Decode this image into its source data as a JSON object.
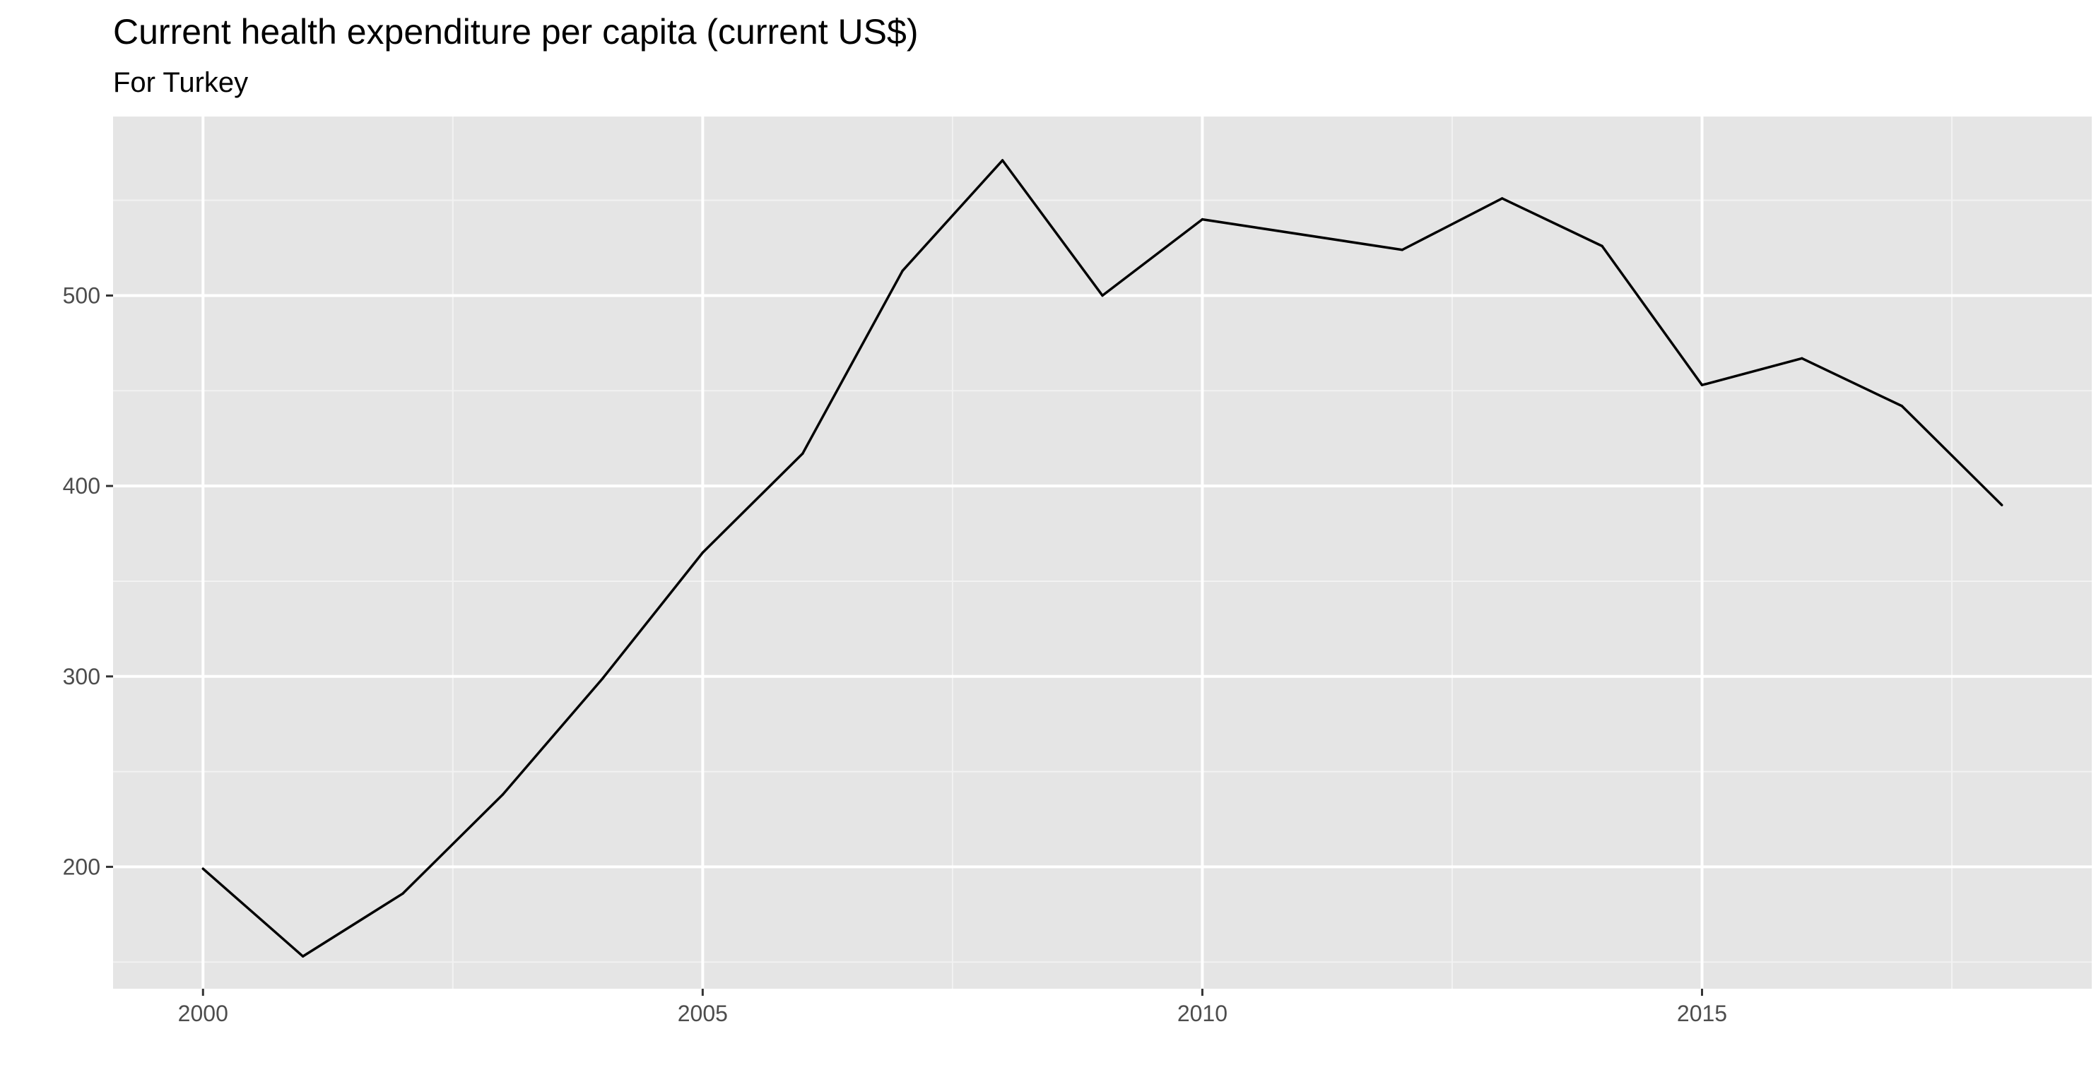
{
  "chart_data": {
    "type": "line",
    "title": "Current health expenditure per capita (current US$)",
    "subtitle": "For Turkey",
    "xlabel": "",
    "ylabel": "",
    "x": [
      2000,
      2001,
      2002,
      2003,
      2004,
      2005,
      2006,
      2007,
      2008,
      2009,
      2010,
      2012,
      2013,
      2014,
      2015,
      2016,
      2017,
      2018
    ],
    "series": [
      {
        "values": [
          199,
          153,
          186,
          238,
          299,
          365,
          417,
          513,
          571,
          500,
          540,
          524,
          551,
          526,
          453,
          467,
          442,
          390
        ]
      }
    ],
    "xlim": [
      1999.1,
      2018.9
    ],
    "ylim": [
      136,
      594
    ],
    "x_ticks": [
      2000,
      2005,
      2010,
      2015
    ],
    "x_tick_labels": [
      "2000",
      "2005",
      "2010",
      "2015"
    ],
    "y_ticks": [
      200,
      300,
      400,
      500
    ],
    "y_tick_labels": [
      "200",
      "300",
      "400",
      "500"
    ],
    "x_minor_ticks": [
      2002.5,
      2007.5,
      2012.5,
      2017.5
    ],
    "y_minor_ticks": [
      150,
      250,
      350,
      450,
      550
    ],
    "grid": true,
    "legend": "none",
    "colors": {
      "panel_background": "#e5e5e5",
      "grid_major": "#ffffff",
      "grid_minor": "#f2f2f2",
      "line": "#000000",
      "tick_text": "#4d4d4d",
      "tick_mark": "#333333",
      "title_text": "#000000"
    }
  }
}
